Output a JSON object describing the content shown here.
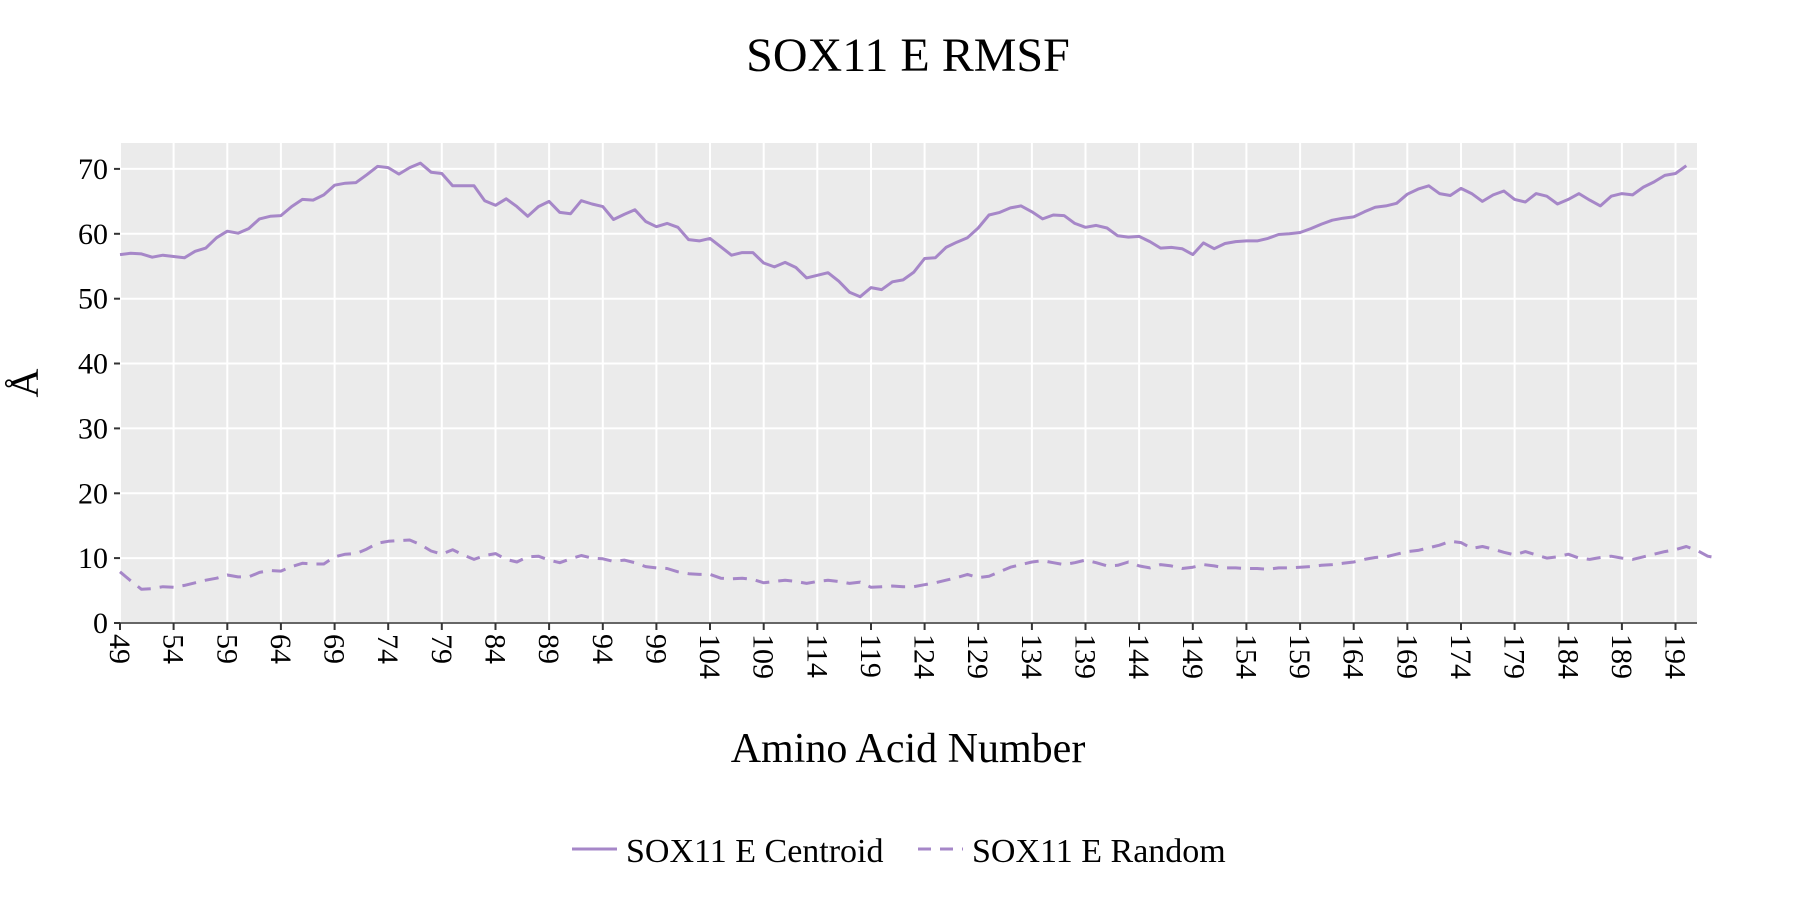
{
  "chart_data": {
    "type": "line",
    "title": "SOX11 E RMSF",
    "xlabel": "Amino Acid Number",
    "ylabel": "Å",
    "xlim": [
      49,
      196
    ],
    "ylim": [
      0,
      74
    ],
    "x_ticks": [
      49,
      54,
      59,
      64,
      69,
      74,
      79,
      84,
      89,
      94,
      99,
      104,
      109,
      114,
      119,
      124,
      129,
      134,
      139,
      144,
      149,
      154,
      159,
      164,
      169,
      174,
      179,
      184,
      189,
      194
    ],
    "y_ticks": [
      0,
      10,
      20,
      30,
      40,
      50,
      60,
      70
    ],
    "grid": true,
    "legend_position": "bottom",
    "x_start": 49,
    "series": [
      {
        "name": "SOX11 E Centroid",
        "color": "#a687c8",
        "dash": "solid",
        "values": [
          56.8,
          57.0,
          56.9,
          56.4,
          56.7,
          56.5,
          56.3,
          57.3,
          57.8,
          59.4,
          60.4,
          60.1,
          60.8,
          62.3,
          62.7,
          62.8,
          64.2,
          65.3,
          65.2,
          66.0,
          67.5,
          67.8,
          67.9,
          69.1,
          70.4,
          70.2,
          69.2,
          70.2,
          70.9,
          69.5,
          69.3,
          67.4,
          67.4,
          67.4,
          65.1,
          64.4,
          65.4,
          64.2,
          62.7,
          64.2,
          65.0,
          63.3,
          63.1,
          65.1,
          64.6,
          64.2,
          62.2,
          63.0,
          63.7,
          61.9,
          61.1,
          61.6,
          61.0,
          59.1,
          58.9,
          59.3,
          58.0,
          56.7,
          57.1,
          57.1,
          55.5,
          54.9,
          55.6,
          54.8,
          53.2,
          53.6,
          54.0,
          52.7,
          51.0,
          50.3,
          51.7,
          51.4,
          52.6,
          52.9,
          54.1,
          56.2,
          56.3,
          57.9,
          58.7,
          59.4,
          60.9,
          62.9,
          63.3,
          64.0,
          64.3,
          63.4,
          62.3,
          62.9,
          62.8,
          61.6,
          61.0,
          61.3,
          60.9,
          59.7,
          59.5,
          59.6,
          58.8,
          57.8,
          57.9,
          57.7,
          56.8,
          58.6,
          57.7,
          58.5,
          58.8,
          58.9,
          58.9,
          59.3,
          59.9,
          60.0,
          60.2,
          60.8,
          61.5,
          62.1,
          62.4,
          62.6,
          63.4,
          64.1,
          64.3,
          64.7,
          66.1,
          66.9,
          67.4,
          66.2,
          65.9,
          67.0,
          66.2,
          65.0,
          66.0,
          66.6,
          65.3,
          64.9,
          66.2,
          65.8,
          64.6,
          65.3,
          66.2,
          65.2,
          64.3,
          65.8,
          66.2,
          66.0,
          67.2,
          68.0,
          69.0,
          69.3,
          70.5
        ]
      },
      {
        "name": "SOX11 E Random",
        "color": "#a687c8",
        "dash": "dashed",
        "values": [
          7.9,
          6.5,
          5.2,
          5.3,
          5.6,
          5.5,
          5.8,
          6.2,
          6.6,
          6.9,
          7.4,
          7.1,
          7.1,
          7.8,
          8.1,
          8.0,
          8.7,
          9.2,
          9.1,
          9.1,
          10.2,
          10.6,
          10.7,
          11.4,
          12.3,
          12.6,
          12.7,
          12.8,
          12.1,
          11.1,
          10.6,
          11.3,
          10.5,
          9.8,
          10.4,
          10.7,
          9.8,
          9.4,
          10.2,
          10.3,
          9.7,
          9.3,
          9.9,
          10.4,
          10.0,
          9.9,
          9.5,
          9.7,
          9.3,
          8.7,
          8.5,
          8.4,
          7.9,
          7.6,
          7.5,
          7.5,
          6.9,
          6.8,
          6.9,
          6.7,
          6.2,
          6.4,
          6.6,
          6.4,
          6.1,
          6.4,
          6.6,
          6.4,
          6.1,
          6.3,
          5.5,
          5.6,
          5.7,
          5.6,
          5.6,
          5.9,
          6.2,
          6.6,
          7.0,
          7.5,
          7.0,
          7.2,
          7.9,
          8.6,
          9.0,
          9.4,
          9.6,
          9.3,
          9.0,
          9.3,
          9.7,
          9.3,
          8.8,
          8.9,
          9.4,
          8.8,
          8.5,
          9.0,
          8.8,
          8.4,
          8.6,
          9.0,
          8.8,
          8.5,
          8.5,
          8.4,
          8.4,
          8.3,
          8.5,
          8.5,
          8.6,
          8.7,
          8.9,
          9.0,
          9.2,
          9.4,
          9.8,
          10.1,
          10.2,
          10.6,
          11.0,
          11.2,
          11.6,
          12.0,
          12.6,
          12.4,
          11.5,
          11.8,
          11.4,
          10.9,
          10.5,
          11.0,
          10.5,
          10.0,
          10.2,
          10.6,
          10.0,
          9.8,
          10.1,
          10.3,
          10.0,
          9.8,
          10.2,
          10.6,
          11.0,
          11.3,
          11.8,
          11.2,
          10.3,
          10.0
        ]
      }
    ]
  }
}
